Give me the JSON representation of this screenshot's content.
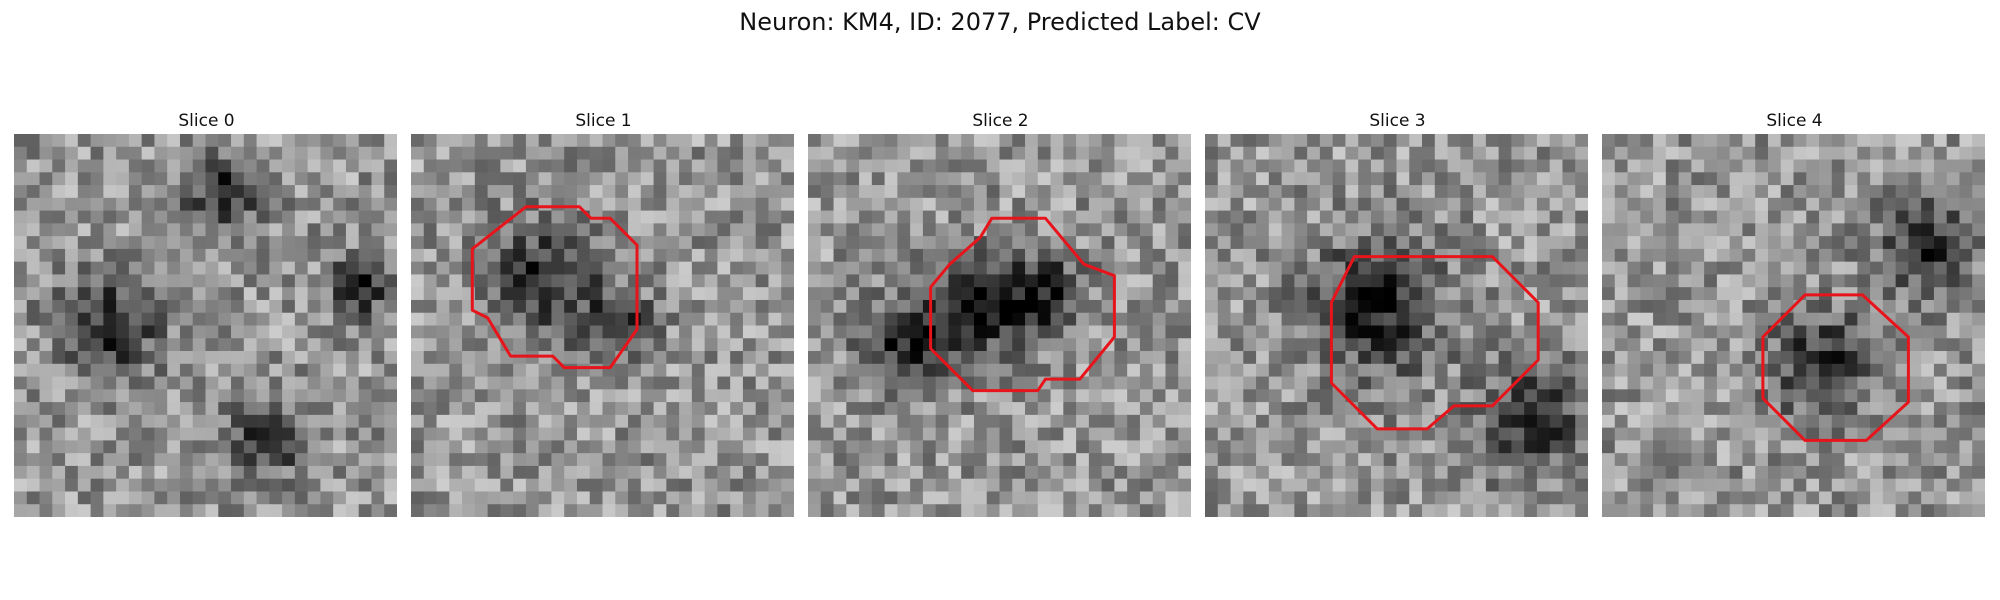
{
  "figure": {
    "title": "Neuron: KM4, ID: 2077, Predicted Label: CV"
  },
  "outline_color": "#e8141b",
  "panels": [
    {
      "title": "Slice 0",
      "dark_spots": [
        [
          0.25,
          0.5,
          0.2
        ],
        [
          0.55,
          0.15,
          0.15
        ],
        [
          0.65,
          0.8,
          0.15
        ],
        [
          0.9,
          0.4,
          0.12
        ]
      ],
      "outline": null
    },
    {
      "title": "Slice 1",
      "dark_spots": [
        [
          0.35,
          0.38,
          0.22
        ],
        [
          0.55,
          0.5,
          0.12
        ]
      ],
      "outline": [
        [
          0.3,
          0.19
        ],
        [
          0.44,
          0.19
        ],
        [
          0.47,
          0.22
        ],
        [
          0.52,
          0.22
        ],
        [
          0.59,
          0.29
        ],
        [
          0.59,
          0.51
        ],
        [
          0.52,
          0.61
        ],
        [
          0.4,
          0.61
        ],
        [
          0.37,
          0.58
        ],
        [
          0.26,
          0.58
        ],
        [
          0.2,
          0.48
        ],
        [
          0.16,
          0.46
        ],
        [
          0.16,
          0.3
        ]
      ]
    },
    {
      "title": "Slice 2",
      "dark_spots": [
        [
          0.45,
          0.45,
          0.2
        ],
        [
          0.25,
          0.55,
          0.18
        ],
        [
          0.62,
          0.42,
          0.15
        ]
      ],
      "outline": [
        [
          0.48,
          0.22
        ],
        [
          0.62,
          0.22
        ],
        [
          0.72,
          0.34
        ],
        [
          0.8,
          0.37
        ],
        [
          0.8,
          0.53
        ],
        [
          0.71,
          0.64
        ],
        [
          0.62,
          0.64
        ],
        [
          0.6,
          0.67
        ],
        [
          0.43,
          0.67
        ],
        [
          0.32,
          0.56
        ],
        [
          0.32,
          0.4
        ],
        [
          0.37,
          0.34
        ],
        [
          0.45,
          0.27
        ]
      ]
    },
    {
      "title": "Slice 3",
      "dark_spots": [
        [
          0.45,
          0.45,
          0.26
        ],
        [
          0.85,
          0.75,
          0.2
        ]
      ],
      "outline": [
        [
          0.39,
          0.32
        ],
        [
          0.75,
          0.32
        ],
        [
          0.87,
          0.44
        ],
        [
          0.87,
          0.59
        ],
        [
          0.75,
          0.71
        ],
        [
          0.65,
          0.71
        ],
        [
          0.58,
          0.77
        ],
        [
          0.45,
          0.77
        ],
        [
          0.33,
          0.65
        ],
        [
          0.33,
          0.44
        ]
      ]
    },
    {
      "title": "Slice 4",
      "dark_spots": [
        [
          0.58,
          0.6,
          0.2
        ],
        [
          0.85,
          0.3,
          0.18
        ]
      ],
      "outline": [
        [
          0.53,
          0.42
        ],
        [
          0.68,
          0.42
        ],
        [
          0.8,
          0.53
        ],
        [
          0.8,
          0.7
        ],
        [
          0.69,
          0.8
        ],
        [
          0.53,
          0.8
        ],
        [
          0.42,
          0.69
        ],
        [
          0.42,
          0.53
        ]
      ]
    }
  ]
}
